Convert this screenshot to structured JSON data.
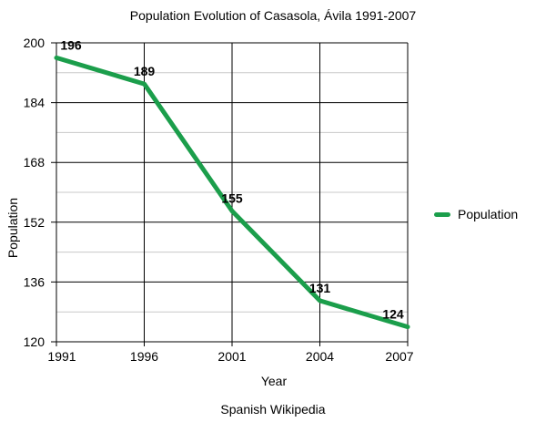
{
  "chart_data": {
    "type": "line",
    "title": "Population Evolution of Casasola, Ávila 1991-2007",
    "xlabel": "Year",
    "ylabel": "Population",
    "categories": [
      "1991",
      "1996",
      "2001",
      "2004",
      "2007"
    ],
    "series": [
      {
        "name": "Population",
        "values": [
          196,
          189,
          155,
          131,
          124
        ],
        "color": "#1b9e4b"
      }
    ],
    "ylim": [
      120,
      200
    ],
    "yticks": [
      120,
      136,
      152,
      168,
      184,
      200
    ],
    "yticks_minor": [
      128,
      144,
      160,
      176,
      192
    ],
    "grid": true,
    "grid_major_color": "#000000",
    "grid_minor_color": "#c8c8c8",
    "legend_position": "right",
    "data_labels": [
      196,
      189,
      155,
      131,
      124
    ],
    "source": "Spanish Wikipedia"
  }
}
